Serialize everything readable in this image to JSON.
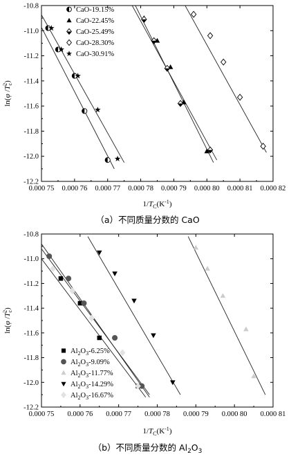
{
  "chart_data": [
    {
      "type": "scatter",
      "panel": "a",
      "caption": "（a）不同质量分数的 CaO",
      "xlabel": {
        "main": "1/",
        "var": "T",
        "sub": "C",
        "unit": "(K",
        "sup": "-1",
        "close": ")"
      },
      "ylabel": {
        "pre": "ln(",
        "phi": "φ",
        "slash": " /",
        "var": "T",
        "sub": "c",
        "sup": "2",
        "close": ")"
      },
      "xlim": [
        0.00075,
        0.00082
      ],
      "ylim": [
        -12.2,
        -10.8
      ],
      "x_ticks": [
        0.00075,
        0.00076,
        0.00077,
        0.00078,
        0.00079,
        0.0008,
        0.00081,
        0.00082
      ],
      "x_tick_labels": [
        "0.000 75",
        "0.000 76",
        "0.000 77",
        "0.000 78",
        "0.000 79",
        "0.000 80",
        "0.000 81",
        "0.000 82"
      ],
      "y_ticks": [
        -12.2,
        -12.0,
        -11.8,
        -11.6,
        -11.4,
        -11.2,
        -11.0,
        -10.8
      ],
      "y_tick_labels": [
        "-12.2",
        "-12.0",
        "-11.8",
        "-11.6",
        "-11.4",
        "-11.2",
        "-11.0",
        "-10.8"
      ],
      "legend_position": "top-left",
      "series": [
        {
          "name": "CaO-19.15%",
          "marker": "half-circle",
          "color": "#000000",
          "x": [
            0.000752,
            0.000755,
            0.00076,
            0.000763,
            0.00077
          ],
          "y": [
            -10.98,
            -11.15,
            -11.36,
            -11.64,
            -12.03
          ],
          "fit": [
            [
              0.000747,
              -10.82
            ],
            [
              0.000772,
              -12.1
            ]
          ]
        },
        {
          "name": "CaO-22.45%",
          "marker": "triangle",
          "color": "#000000",
          "x": [
            0.000781,
            0.000785,
            0.000789,
            0.000793,
            0.0008
          ],
          "y": [
            -10.9,
            -11.08,
            -11.29,
            -11.57,
            -11.96
          ],
          "fit": [
            [
              0.000778,
              -10.78
            ],
            [
              0.000802,
              -12.05
            ]
          ]
        },
        {
          "name": "CaO-25.49%",
          "marker": "half-diamond",
          "color": "#000000",
          "x": [
            0.000781,
            0.000784,
            0.000788,
            0.000792,
            0.000801
          ],
          "y": [
            -10.91,
            -11.08,
            -11.3,
            -11.58,
            -11.95
          ],
          "fit": [
            [
              0.000777,
              -10.78
            ],
            [
              0.000803,
              -12.03
            ]
          ]
        },
        {
          "name": "CaO-28.30%",
          "marker": "diamond",
          "color": "#000000",
          "x": [
            0.000796,
            0.000801,
            0.000805,
            0.00081,
            0.000817
          ],
          "y": [
            -10.87,
            -11.04,
            -11.25,
            -11.53,
            -11.92
          ],
          "fit": [
            [
              0.000793,
              -10.78
            ],
            [
              0.000818,
              -11.97
            ]
          ]
        },
        {
          "name": "CaO-30.91%",
          "marker": "star",
          "color": "#000000",
          "x": [
            0.000753,
            0.000756,
            0.000761,
            0.000767,
            0.000773
          ],
          "y": [
            -10.98,
            -11.15,
            -11.36,
            -11.63,
            -12.02
          ],
          "fit": [
            [
              0.000748,
              -10.78
            ],
            [
              0.000775,
              -12.05
            ]
          ]
        }
      ]
    },
    {
      "type": "scatter",
      "panel": "b",
      "caption": "（b）不同质量分数的 Al₂O₃",
      "xlabel": {
        "main": "1/",
        "var": "T",
        "sub": "C",
        "unit": "(K",
        "sup": "-1",
        "close": ")"
      },
      "ylabel": {
        "pre": "ln(",
        "phi": "φ",
        "slash": " /",
        "var": "T",
        "sub": "c",
        "sup": "2",
        "close": ")"
      },
      "xlim": [
        0.00075,
        0.00081
      ],
      "ylim": [
        -12.2,
        -10.8
      ],
      "x_ticks": [
        0.00075,
        0.00076,
        0.00077,
        0.00078,
        0.00079,
        0.0008,
        0.00081
      ],
      "x_tick_labels": [
        "0.000 75",
        "0.000 76",
        "0.000 77",
        "0.000 78",
        "0.000 79",
        "0.000 80",
        "0.000 81"
      ],
      "y_ticks": [
        -12.2,
        -12.0,
        -11.8,
        -11.6,
        -11.4,
        -11.2,
        -11.0,
        -10.8
      ],
      "y_tick_labels": [
        "-12.2",
        "-12.0",
        "-11.8",
        "-11.6",
        "-11.4",
        "-11.2",
        "-11.0",
        "-10.8"
      ],
      "legend_position": "bottom-left",
      "series": [
        {
          "name": "Al2O3-6.25%",
          "label_main": "Al",
          "label_sub1": "2",
          "label_mid": "O",
          "label_sub2": "3",
          "label_tail": "-6.25%",
          "marker": "square",
          "color": "#000000",
          "x": [
            0.000755,
            0.00076,
            0.000765,
            0.000775
          ],
          "y": [
            -11.16,
            -11.36,
            -11.64,
            -12.03
          ],
          "fit": [
            [
              0.00075,
              -10.92
            ],
            [
              0.000778,
              -12.1
            ]
          ]
        },
        {
          "name": "Al2O3-9.09%",
          "label_main": "Al",
          "label_sub1": "2",
          "label_mid": "O",
          "label_sub2": "3",
          "label_tail": "-9.09%",
          "marker": "circle",
          "color": "#555555",
          "x": [
            0.000752,
            0.000757,
            0.000761,
            0.000769,
            0.000776
          ],
          "y": [
            -10.98,
            -11.16,
            -11.36,
            -11.64,
            -12.03
          ],
          "fit": [
            [
              0.00075,
              -10.88
            ],
            [
              0.000778,
              -12.12
            ]
          ]
        },
        {
          "name": "Al2O3-11.77%",
          "label_main": "Al",
          "label_sub1": "2",
          "label_mid": "O",
          "label_sub2": "3",
          "label_tail": "-11.77%",
          "marker": "triangle",
          "color": "#cccccc",
          "x": [
            0.00079,
            0.000793,
            0.000797,
            0.000803,
            0.000805
          ],
          "y": [
            -10.91,
            -11.08,
            -11.3,
            -11.57,
            -11.95
          ],
          "fit": [
            [
              0.000788,
              -10.82
            ],
            [
              0.000808,
              -12.1
            ]
          ]
        },
        {
          "name": "Al2O3-14.29%",
          "label_main": "Al",
          "label_sub1": "2",
          "label_mid": "O",
          "label_sub2": "3",
          "label_tail": "-14.29%",
          "marker": "triangle-down",
          "color": "#000000",
          "x": [
            0.000765,
            0.000769,
            0.000774,
            0.000779,
            0.000784
          ],
          "y": [
            -10.95,
            -11.12,
            -11.34,
            -11.62,
            -12.0
          ],
          "fit": [
            [
              0.000762,
              -10.82
            ],
            [
              0.000786,
              -12.1
            ]
          ]
        },
        {
          "name": "Al2O3-16.67%",
          "label_main": "Al",
          "label_sub1": "2",
          "label_mid": "O",
          "label_sub2": "3",
          "label_tail": "-16.67%",
          "marker": "diamond",
          "color": "#e2e2e2",
          "x": [
            0.000753,
            0.000758,
            0.000763,
            0.000771,
            0.000775
          ],
          "y": [
            -11.08,
            -11.26,
            -11.48,
            -11.76,
            -12.03
          ],
          "fit": [
            [
              0.00075,
              -11.0
            ],
            [
              0.000777,
              -12.12
            ]
          ]
        }
      ]
    }
  ]
}
